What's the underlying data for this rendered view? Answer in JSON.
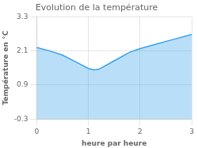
{
  "chart_data": {
    "type": "area",
    "title": "Evolution de la température",
    "xlabel": "heure par heure",
    "ylabel": "Température en °C",
    "x": [
      0,
      0.25,
      0.5,
      0.75,
      1.0,
      1.1,
      1.2,
      1.5,
      1.8,
      2.0,
      2.3,
      2.6,
      3.0
    ],
    "values": [
      2.22,
      2.1,
      1.95,
      1.72,
      1.48,
      1.43,
      1.45,
      1.75,
      2.05,
      2.18,
      2.33,
      2.48,
      2.68
    ],
    "xlim": [
      0,
      3
    ],
    "ylim": [
      -0.3,
      3.3
    ],
    "xticks": [
      0,
      1,
      2,
      3
    ],
    "yticks": [
      -0.3,
      0.9,
      2.1,
      3.3
    ],
    "grid": true
  }
}
